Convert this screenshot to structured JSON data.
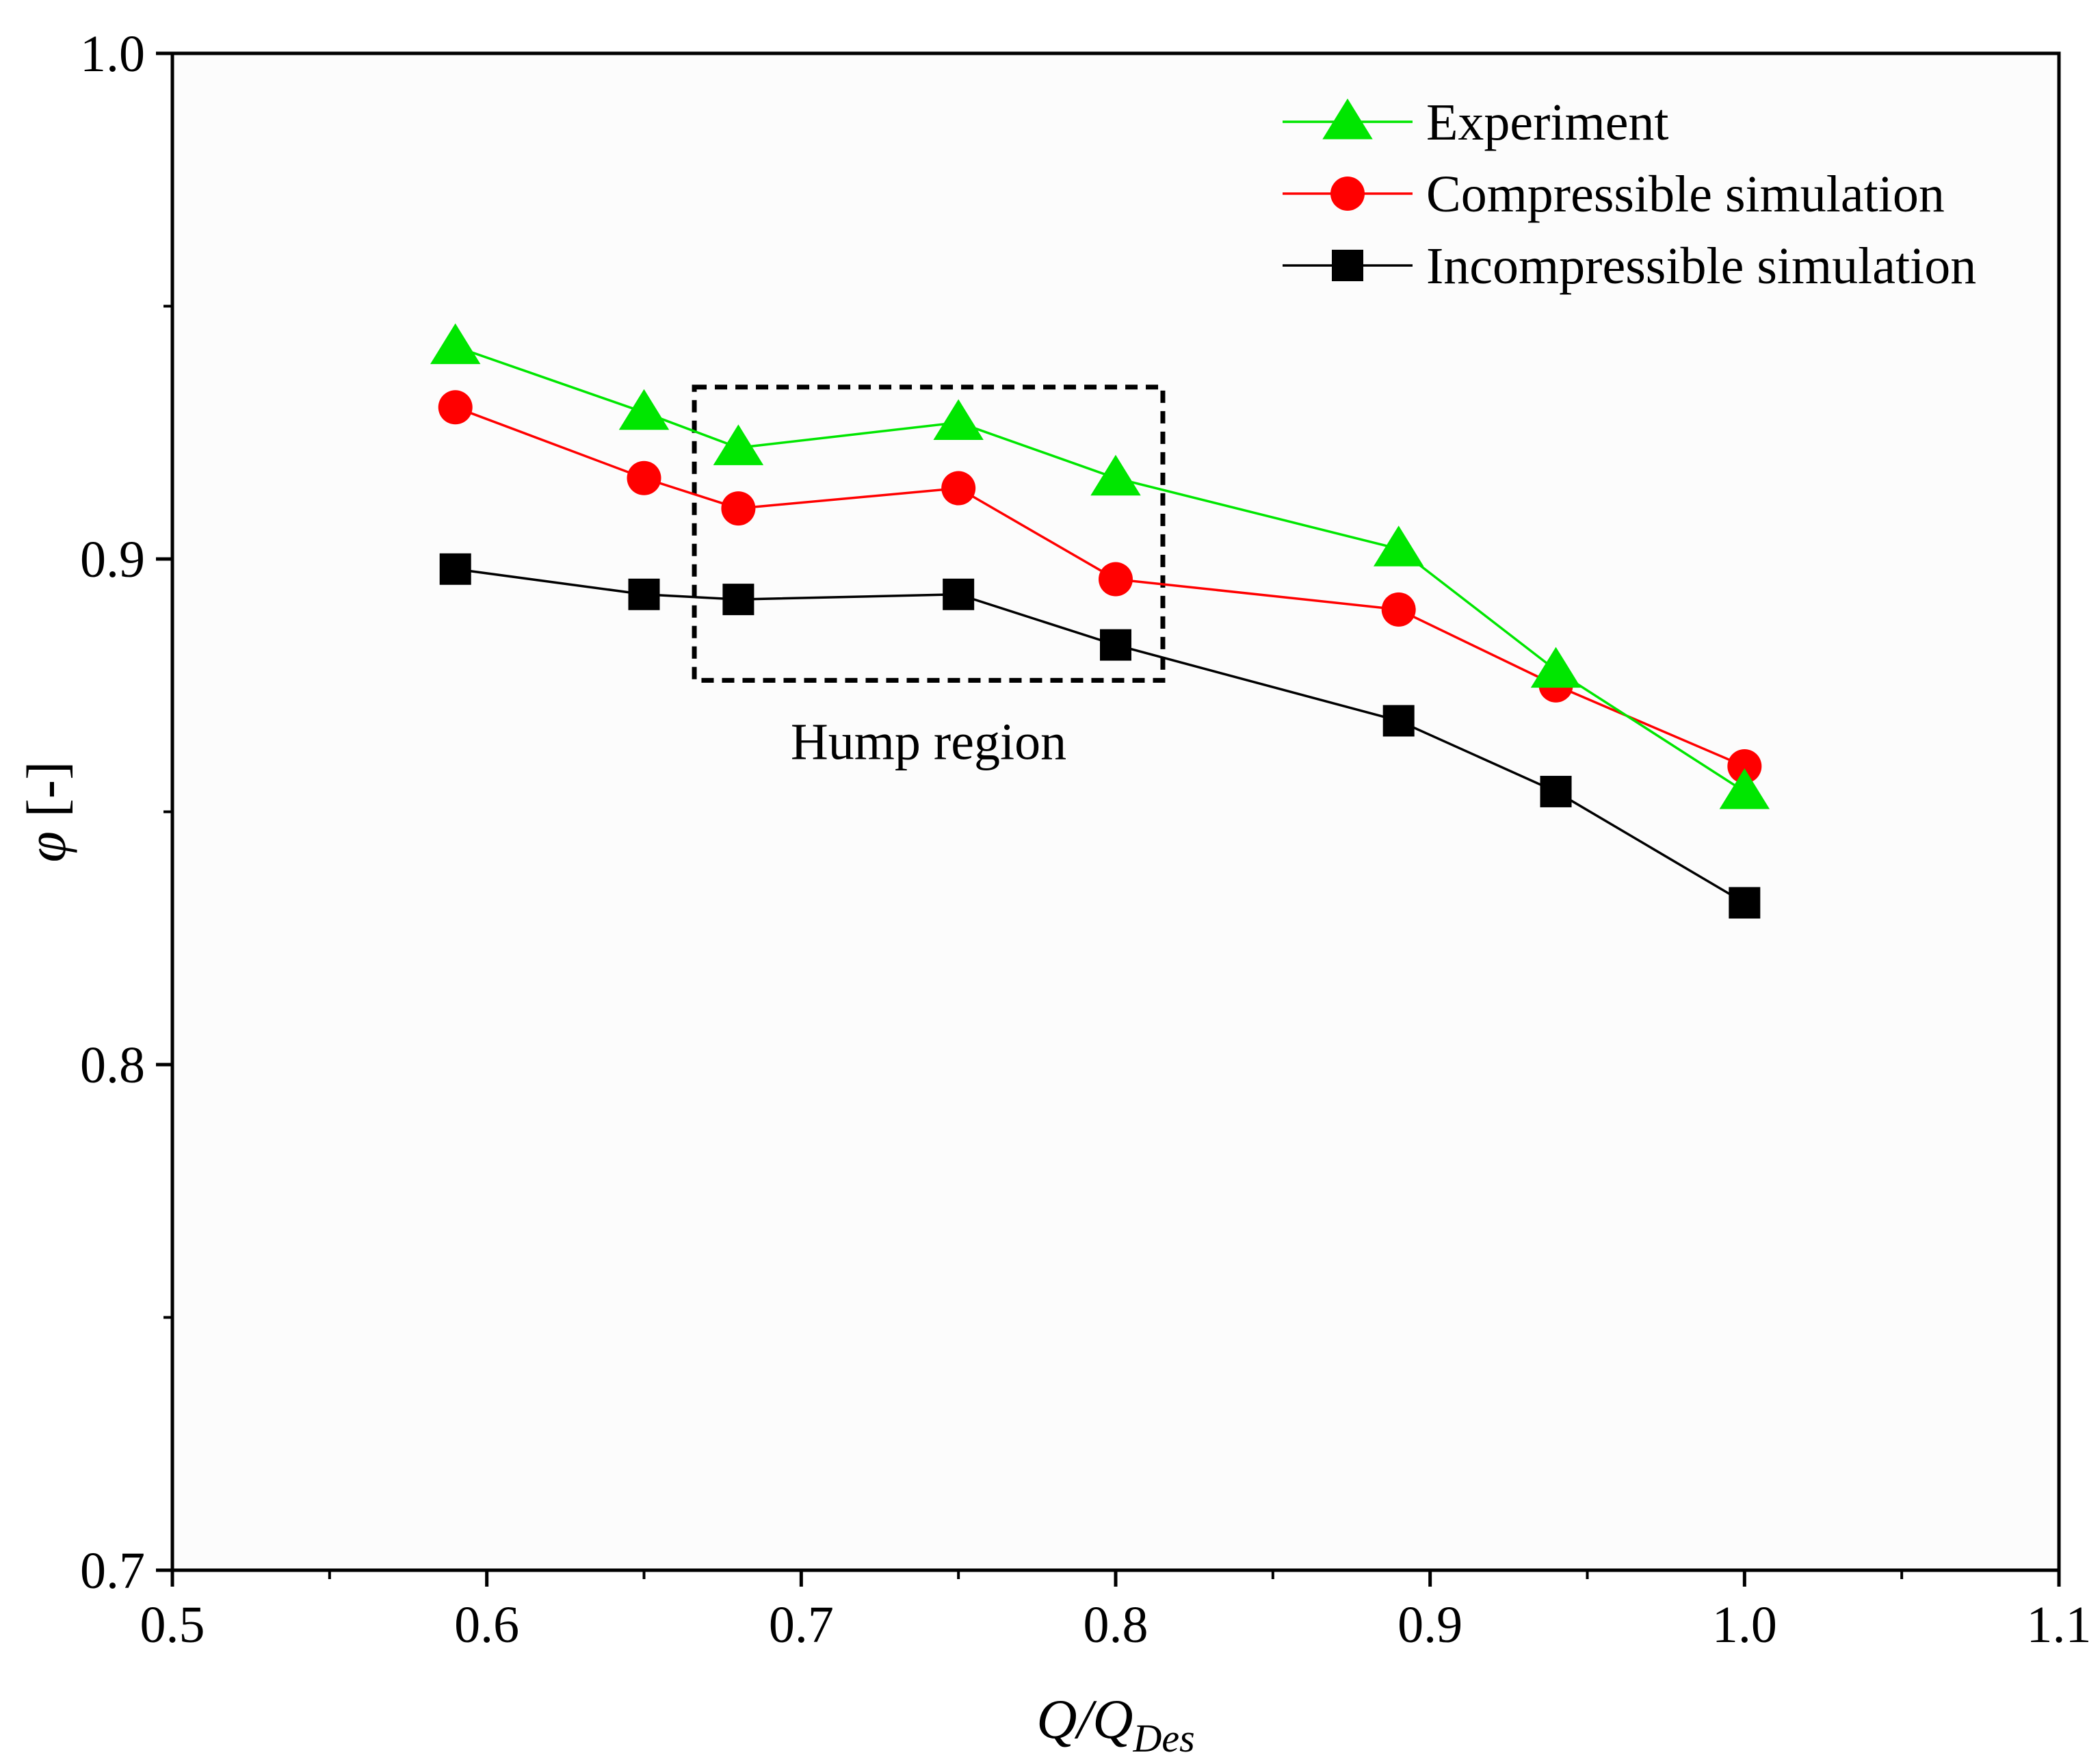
{
  "chart_data": {
    "type": "line",
    "title": "",
    "xlabel": {
      "main": "Q/Q",
      "sub": "Des"
    },
    "ylabel": {
      "symbol": "φ",
      "unit": " [-]"
    },
    "xlim": [
      0.5,
      1.1
    ],
    "ylim": [
      0.7,
      1.0
    ],
    "xticks": [
      0.5,
      0.6,
      0.7,
      0.8,
      0.9,
      1.0,
      1.1
    ],
    "xtick_labels": [
      "0.5",
      "0.6",
      "0.7",
      "0.8",
      "0.9",
      "1.0",
      "1.1"
    ],
    "yticks": [
      0.7,
      0.8,
      0.9,
      1.0
    ],
    "ytick_labels": [
      "0.7",
      "0.8",
      "0.9",
      "1.0"
    ],
    "grid": false,
    "legend_position": "top-right",
    "x": [
      0.59,
      0.65,
      0.68,
      0.75,
      0.8,
      0.89,
      0.94,
      1.0
    ],
    "series": [
      {
        "name": "Experiment",
        "marker": "triangle",
        "color": "#00e600",
        "values": [
          0.942,
          0.929,
          0.922,
          0.927,
          0.916,
          0.902,
          0.878,
          0.854
        ]
      },
      {
        "name": "Compressible simulation",
        "marker": "circle",
        "color": "#ff0000",
        "values": [
          0.93,
          0.916,
          0.91,
          0.914,
          0.896,
          0.89,
          0.875,
          0.859
        ]
      },
      {
        "name": "Incompressible simulation",
        "marker": "square",
        "color": "#000000",
        "values": [
          0.898,
          0.893,
          0.892,
          0.893,
          0.883,
          0.868,
          0.854,
          0.832
        ]
      }
    ],
    "annotations": [
      {
        "text": "Hump region",
        "box_x": [
          0.666,
          0.815
        ],
        "box_y": [
          0.876,
          0.934
        ]
      }
    ]
  }
}
